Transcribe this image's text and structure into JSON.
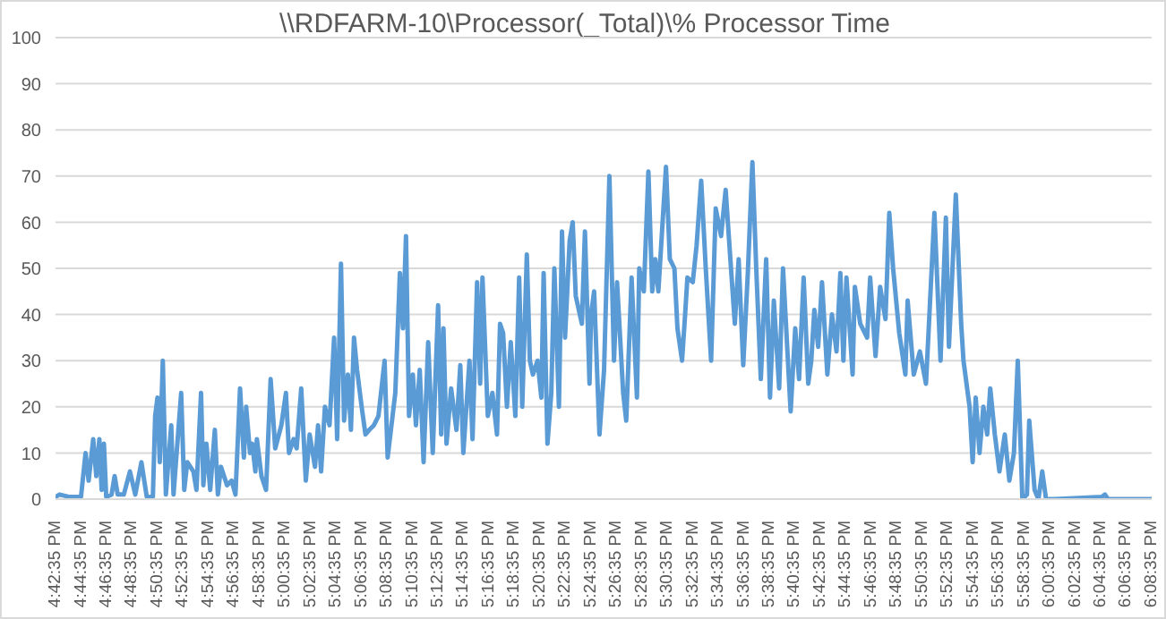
{
  "chart_data": {
    "type": "line",
    "title": "\\\\RDFARM-10\\Processor(_Total)\\% Processor Time",
    "series": [
      {
        "color": "#5b9bd5",
        "x": [
          16.71,
          16.715,
          16.727,
          16.743,
          16.749,
          16.753,
          16.759,
          16.763,
          16.767,
          16.77,
          16.773,
          16.776,
          16.783,
          16.787,
          16.791,
          16.799,
          16.807,
          16.814,
          16.822,
          16.829,
          16.837,
          16.84,
          16.843,
          16.846,
          16.85,
          16.854,
          16.861,
          16.864,
          16.874,
          16.878,
          16.882,
          16.89,
          16.894,
          16.9,
          16.903,
          16.907,
          16.912,
          16.918,
          16.922,
          16.926,
          16.934,
          16.94,
          16.945,
          16.951,
          16.956,
          16.959,
          16.964,
          16.967,
          16.971,
          16.973,
          16.979,
          16.985,
          16.991,
          16.997,
          17.005,
          17.011,
          17.015,
          17.021,
          17.025,
          17.031,
          17.037,
          17.042,
          17.049,
          17.053,
          17.057,
          17.062,
          17.068,
          17.074,
          17.078,
          17.083,
          17.087,
          17.092,
          17.096,
          17.1,
          17.104,
          17.11,
          17.115,
          17.12,
          17.126,
          17.132,
          17.14,
          17.144,
          17.154,
          17.16,
          17.164,
          17.168,
          17.172,
          17.177,
          17.181,
          17.186,
          17.191,
          17.197,
          17.203,
          17.21,
          17.214,
          17.217,
          17.221,
          17.227,
          17.234,
          17.239,
          17.243,
          17.251,
          17.255,
          17.261,
          17.265,
          17.268,
          17.275,
          17.281,
          17.287,
          17.291,
          17.295,
          17.3,
          17.305,
          17.311,
          17.316,
          17.32,
          17.326,
          17.33,
          17.334,
          17.34,
          17.345,
          17.348,
          17.353,
          17.358,
          17.362,
          17.368,
          17.372,
          17.376,
          17.382,
          17.386,
          17.39,
          17.398,
          17.402,
          17.408,
          17.41,
          17.414,
          17.421,
          17.427,
          17.434,
          17.44,
          17.444,
          17.452,
          17.456,
          17.463,
          17.47,
          17.473,
          17.479,
          17.485,
          17.49,
          17.494,
          17.498,
          17.508,
          17.513,
          17.519,
          17.523,
          17.529,
          17.533,
          17.536,
          17.543,
          17.548,
          17.554,
          17.56,
          17.567,
          17.573,
          17.58,
          17.586,
          17.593,
          17.598,
          17.603,
          17.609,
          17.615,
          17.621,
          17.626,
          17.632,
          17.639,
          17.644,
          17.649,
          17.656,
          17.661,
          17.671,
          17.677,
          17.682,
          17.688,
          17.694,
          17.698,
          17.702,
          17.707,
          17.712,
          17.719,
          17.725,
          17.731,
          17.736,
          17.74,
          17.744,
          17.752,
          17.755,
          17.762,
          17.771,
          17.775,
          17.782,
          17.788,
          17.795,
          17.8,
          17.805,
          17.813,
          17.821,
          17.824,
          17.832,
          17.84,
          17.848,
          17.859,
          17.867,
          17.874,
          17.878,
          17.887,
          17.894,
          17.897,
          17.905,
          17.909,
          17.913,
          17.918,
          17.923,
          17.928,
          17.932,
          17.938,
          17.944,
          17.951,
          17.957,
          17.963,
          17.968,
          17.974,
          17.98,
          17.983,
          17.99,
          17.995,
          18.0,
          18.005,
          18.016,
          18.078,
          18.082,
          18.086,
          18.143
        ],
        "values": [
          0.5,
          1,
          0.5,
          0.5,
          10,
          4,
          13,
          5,
          13,
          2,
          12,
          0.5,
          1,
          5,
          1,
          1,
          6,
          1,
          8,
          0.5,
          0.5,
          18,
          22,
          8,
          30,
          1,
          16,
          1,
          23,
          2,
          8,
          6,
          2,
          23,
          3,
          12,
          2,
          15,
          1,
          7,
          3,
          4,
          1,
          24,
          9,
          20,
          10,
          12,
          6,
          13,
          5,
          2,
          26,
          11,
          16,
          23,
          10,
          13,
          11,
          24,
          4,
          14,
          7,
          16,
          6,
          20,
          16,
          35,
          13,
          51,
          17,
          27,
          15,
          35,
          28,
          20,
          14,
          15,
          16,
          18,
          30,
          9,
          23,
          49,
          37,
          57,
          18,
          27,
          16,
          28,
          8,
          34,
          10,
          42,
          14,
          37,
          12,
          24,
          15,
          29,
          10,
          30,
          13,
          47,
          25,
          48,
          18,
          23,
          14,
          38,
          36,
          20,
          34,
          18,
          48,
          20,
          53,
          30,
          27,
          30,
          22,
          49,
          12,
          23,
          50,
          20,
          58,
          35,
          56,
          60,
          44,
          38,
          58,
          25,
          40,
          45,
          14,
          28,
          70,
          30,
          47,
          23,
          17,
          48,
          22,
          50,
          45,
          71,
          45,
          52,
          45,
          72,
          52,
          50,
          37,
          30,
          40,
          48,
          47,
          55,
          69,
          50,
          30,
          63,
          57,
          67,
          50,
          38,
          52,
          29,
          49,
          73,
          50,
          26,
          52,
          22,
          43,
          24,
          50,
          19,
          37,
          26,
          48,
          25,
          30,
          41,
          33,
          47,
          27,
          40,
          32,
          49,
          30,
          48,
          27,
          46,
          38,
          35,
          48,
          31,
          46,
          39,
          62,
          50,
          36,
          27,
          43,
          27,
          32,
          25,
          62,
          30,
          61,
          33,
          66,
          38,
          30,
          20,
          8,
          22,
          10,
          20,
          14,
          24,
          14,
          6,
          14,
          4,
          10,
          30,
          0,
          1,
          17,
          2,
          0,
          6,
          0,
          0,
          0.5,
          1,
          0,
          0
        ]
      }
    ],
    "xlim": [
      16.7097,
      18.1431
    ],
    "xticks": [
      {
        "value": 16.7097,
        "label": "4:42:35 PM"
      },
      {
        "value": 16.7431,
        "label": "4:44:35 PM"
      },
      {
        "value": 16.7764,
        "label": "4:46:35 PM"
      },
      {
        "value": 16.8097,
        "label": "4:48:35 PM"
      },
      {
        "value": 16.8431,
        "label": "4:50:35 PM"
      },
      {
        "value": 16.8764,
        "label": "4:52:35 PM"
      },
      {
        "value": 16.9097,
        "label": "4:54:35 PM"
      },
      {
        "value": 16.9431,
        "label": "4:56:35 PM"
      },
      {
        "value": 16.9764,
        "label": "4:58:35 PM"
      },
      {
        "value": 17.0097,
        "label": "5:00:35 PM"
      },
      {
        "value": 17.0431,
        "label": "5:02:35 PM"
      },
      {
        "value": 17.0764,
        "label": "5:04:35 PM"
      },
      {
        "value": 17.1097,
        "label": "5:06:35 PM"
      },
      {
        "value": 17.1431,
        "label": "5:08:35 PM"
      },
      {
        "value": 17.1764,
        "label": "5:10:35 PM"
      },
      {
        "value": 17.2097,
        "label": "5:12:35 PM"
      },
      {
        "value": 17.2431,
        "label": "5:14:35 PM"
      },
      {
        "value": 17.2764,
        "label": "5:16:35 PM"
      },
      {
        "value": 17.3097,
        "label": "5:18:35 PM"
      },
      {
        "value": 17.3431,
        "label": "5:20:35 PM"
      },
      {
        "value": 17.3764,
        "label": "5:22:35 PM"
      },
      {
        "value": 17.4097,
        "label": "5:24:35 PM"
      },
      {
        "value": 17.4431,
        "label": "5:26:35 PM"
      },
      {
        "value": 17.4764,
        "label": "5:28:35 PM"
      },
      {
        "value": 17.5097,
        "label": "5:30:35 PM"
      },
      {
        "value": 17.5431,
        "label": "5:32:35 PM"
      },
      {
        "value": 17.5764,
        "label": "5:34:35 PM"
      },
      {
        "value": 17.6097,
        "label": "5:36:35 PM"
      },
      {
        "value": 17.6431,
        "label": "5:38:35 PM"
      },
      {
        "value": 17.6764,
        "label": "5:40:35 PM"
      },
      {
        "value": 17.7097,
        "label": "5:42:35 PM"
      },
      {
        "value": 17.7431,
        "label": "5:44:35 PM"
      },
      {
        "value": 17.7764,
        "label": "5:46:35 PM"
      },
      {
        "value": 17.8097,
        "label": "5:48:35 PM"
      },
      {
        "value": 17.8431,
        "label": "5:50:35 PM"
      },
      {
        "value": 17.8764,
        "label": "5:52:35 PM"
      },
      {
        "value": 17.9097,
        "label": "5:54:35 PM"
      },
      {
        "value": 17.9431,
        "label": "5:56:35 PM"
      },
      {
        "value": 17.9764,
        "label": "5:58:35 PM"
      },
      {
        "value": 18.0097,
        "label": "6:00:35 PM"
      },
      {
        "value": 18.0431,
        "label": "6:02:35 PM"
      },
      {
        "value": 18.0764,
        "label": "6:04:35 PM"
      },
      {
        "value": 18.1097,
        "label": "6:06:35 PM"
      },
      {
        "value": 18.1431,
        "label": "6:08:35 PM"
      }
    ],
    "ylim": [
      0,
      100
    ],
    "yticks": [
      0,
      10,
      20,
      30,
      40,
      50,
      60,
      70,
      80,
      90,
      100
    ],
    "grid": "y",
    "legend": false,
    "marker": "none",
    "line_style": "solid"
  }
}
